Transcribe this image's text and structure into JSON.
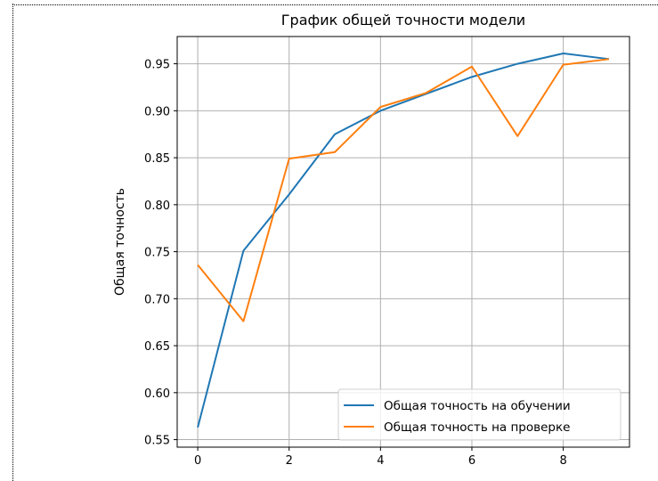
{
  "chart_data": {
    "type": "line",
    "title": "График общей точности модели",
    "xlabel": "",
    "ylabel": "Общая точность",
    "x": [
      0,
      1,
      2,
      3,
      4,
      5,
      6,
      7,
      8,
      9
    ],
    "xlim": [
      -0.45,
      9.45
    ],
    "ylim": [
      0.542,
      0.979
    ],
    "xticks": [
      0,
      2,
      4,
      6,
      8
    ],
    "yticks": [
      0.55,
      0.6,
      0.65,
      0.7,
      0.75,
      0.8,
      0.85,
      0.9,
      0.95
    ],
    "grid": true,
    "legend_position": "lower right",
    "series": [
      {
        "name": "Общая точность на обучении",
        "color": "#1f77b4",
        "values": [
          0.563,
          0.751,
          0.811,
          0.875,
          0.9,
          0.918,
          0.936,
          0.95,
          0.961,
          0.955
        ]
      },
      {
        "name": "Общая точность на проверке",
        "color": "#ff7f0e",
        "values": [
          0.736,
          0.676,
          0.849,
          0.856,
          0.904,
          0.919,
          0.947,
          0.873,
          0.949,
          0.955
        ]
      }
    ]
  }
}
